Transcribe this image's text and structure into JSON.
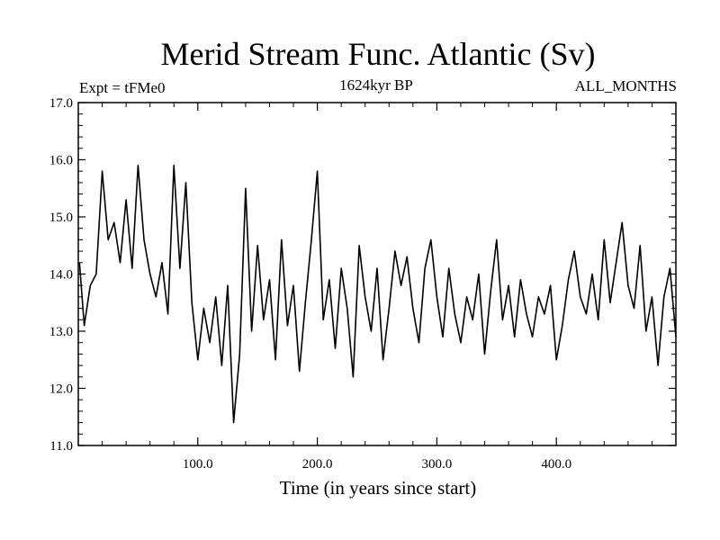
{
  "chart_data": {
    "type": "line",
    "title": "Merid Stream Func. Atlantic (Sv)",
    "subtitle_left": "Expt = tFMe0",
    "subtitle_center": "1624kyr BP",
    "subtitle_right": "ALL_MONTHS",
    "xlabel": "Time (in years since start)",
    "ylabel": "",
    "xlim": [
      0,
      500
    ],
    "ylim": [
      11.0,
      17.0
    ],
    "x_ticks": [
      {
        "value": 100,
        "label": "100.0"
      },
      {
        "value": 200,
        "label": "200.0"
      },
      {
        "value": 300,
        "label": "300.0"
      },
      {
        "value": 400,
        "label": "400.0"
      }
    ],
    "y_ticks": [
      {
        "value": 11.0,
        "label": "11.0"
      },
      {
        "value": 12.0,
        "label": "12.0"
      },
      {
        "value": 13.0,
        "label": "13.0"
      },
      {
        "value": 14.0,
        "label": "14.0"
      },
      {
        "value": 15.0,
        "label": "15.0"
      },
      {
        "value": 16.0,
        "label": "16.0"
      },
      {
        "value": 17.0,
        "label": "17.0"
      }
    ],
    "grid": false,
    "line_color": "#000000",
    "series": [
      {
        "name": "Merid Stream Func. Atlantic",
        "x": [
          1,
          5,
          10,
          15,
          20,
          25,
          30,
          35,
          40,
          45,
          50,
          55,
          60,
          65,
          70,
          75,
          80,
          85,
          90,
          95,
          100,
          105,
          110,
          115,
          120,
          125,
          130,
          135,
          140,
          145,
          150,
          155,
          160,
          165,
          170,
          175,
          180,
          185,
          190,
          195,
          200,
          205,
          210,
          215,
          220,
          225,
          230,
          235,
          240,
          245,
          250,
          255,
          260,
          265,
          270,
          275,
          280,
          285,
          290,
          295,
          300,
          305,
          310,
          315,
          320,
          325,
          330,
          335,
          340,
          345,
          350,
          355,
          360,
          365,
          370,
          375,
          380,
          385,
          390,
          395,
          400,
          405,
          410,
          415,
          420,
          425,
          430,
          435,
          440,
          445,
          450,
          455,
          460,
          465,
          470,
          475,
          480,
          485,
          490,
          495,
          500
        ],
        "values": [
          14.2,
          13.1,
          13.8,
          14.0,
          15.8,
          14.6,
          14.9,
          14.2,
          15.3,
          14.1,
          15.9,
          14.6,
          14.0,
          13.6,
          14.2,
          13.3,
          15.9,
          14.1,
          15.6,
          13.5,
          12.5,
          13.4,
          12.8,
          13.6,
          12.4,
          13.8,
          11.4,
          12.6,
          15.5,
          13.0,
          14.5,
          13.2,
          13.9,
          12.5,
          14.6,
          13.1,
          13.8,
          12.3,
          13.5,
          14.6,
          15.8,
          13.2,
          13.9,
          12.7,
          14.1,
          13.4,
          12.2,
          14.5,
          13.6,
          13.0,
          14.1,
          12.5,
          13.4,
          14.4,
          13.8,
          14.3,
          13.4,
          12.8,
          14.1,
          14.6,
          13.6,
          12.9,
          14.1,
          13.3,
          12.8,
          13.6,
          13.2,
          14.0,
          12.6,
          13.7,
          14.6,
          13.2,
          13.8,
          12.9,
          13.9,
          13.3,
          12.9,
          13.6,
          13.3,
          13.8,
          12.5,
          13.1,
          13.9,
          14.4,
          13.6,
          13.3,
          14.0,
          13.2,
          14.6,
          13.5,
          14.2,
          14.9,
          13.8,
          13.4,
          14.5,
          13.0,
          13.6,
          12.4,
          13.6,
          14.1,
          12.9
        ]
      }
    ]
  }
}
